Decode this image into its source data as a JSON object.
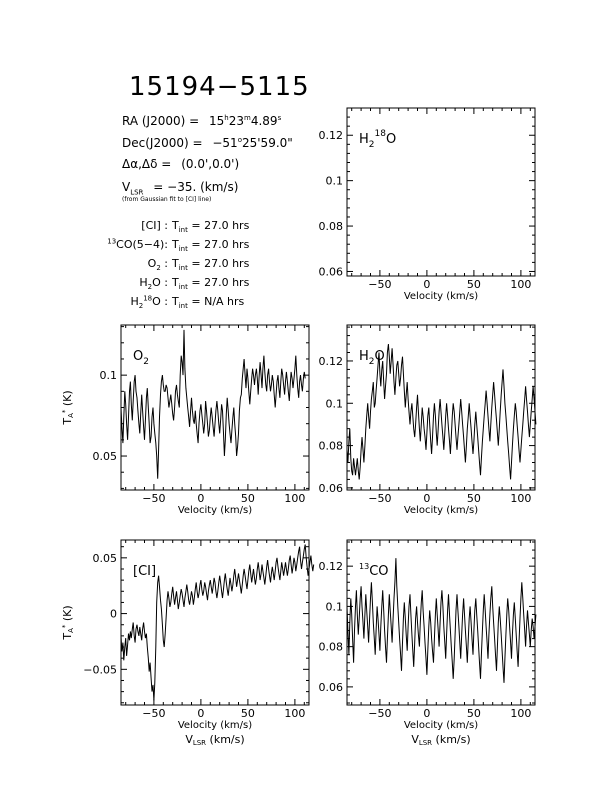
{
  "header": {
    "source": "15194−5115",
    "ra_label": "RA (J2000) =",
    "ra_h": "15",
    "ra_m": "23",
    "ra_s": "4.89",
    "dec_label": "Dec(J2000) =",
    "dec_deg": "−51",
    "dec_rest": "25'59.0\"",
    "offset_label": "Δα,Δδ =",
    "offset_value": "(0.0',0.0')",
    "vlsr_label": "= −35. (km/s)",
    "vlsr_note": "(from Gaussian fit to [CI] line)"
  },
  "integrations": [
    {
      "line": "[CI]",
      "value": "27.0 hrs"
    },
    {
      "line": "13CO(5−4)",
      "value": "27.0 hrs"
    },
    {
      "line": "O2",
      "value": "27.0 hrs"
    },
    {
      "line": "H2O",
      "value": "27.0 hrs"
    },
    {
      "line": "H218O",
      "value": "N/A hrs"
    }
  ],
  "tint_text": "T",
  "tint_sub": "int",
  "chart_data": [
    {
      "id": "h218o",
      "type": "line",
      "label_main": "H",
      "label_sub": "2",
      "label_sup": "18",
      "label_tail": "O",
      "xlim": [
        -85,
        115
      ],
      "ylim": [
        0.058,
        0.132
      ],
      "xticks": [
        -50,
        0,
        50,
        100
      ],
      "yticks": [
        0.06,
        0.08,
        0.1,
        0.12
      ],
      "xlabel": "Velocity (km/s)",
      "xlabel2": "",
      "ylabel": "",
      "series": []
    },
    {
      "id": "o2",
      "type": "line",
      "label_main": "O",
      "label_sub": "2",
      "label_sup": "",
      "label_tail": "",
      "xlim": [
        -85,
        115
      ],
      "ylim": [
        0.029,
        0.131
      ],
      "xticks": [
        -50,
        0,
        50,
        100
      ],
      "yticks": [
        0.05,
        0.1
      ],
      "xlabel": "Velocity (km/s)",
      "xlabel2": "",
      "ylabel": "T",
      "series": [
        {
          "x0": -85,
          "dx": 1,
          "values": [
            0.08,
            0.068,
            0.058,
            0.074,
            0.09,
            0.082,
            0.07,
            0.06,
            0.074,
            0.09,
            0.096,
            0.082,
            0.072,
            0.084,
            0.096,
            0.1,
            0.09,
            0.086,
            0.078,
            0.07,
            0.064,
            0.076,
            0.088,
            0.078,
            0.068,
            0.06,
            0.072,
            0.086,
            0.092,
            0.08,
            0.07,
            0.058,
            0.062,
            0.074,
            0.08,
            0.07,
            0.064,
            0.058,
            0.05,
            0.036,
            0.054,
            0.074,
            0.088,
            0.096,
            0.1,
            0.094,
            0.09,
            0.09,
            0.094,
            0.092,
            0.086,
            0.08,
            0.084,
            0.088,
            0.082,
            0.076,
            0.072,
            0.08,
            0.09,
            0.094,
            0.088,
            0.084,
            0.08,
            0.1,
            0.112,
            0.108,
            0.1,
            0.128,
            0.104,
            0.092,
            0.086,
            0.08,
            0.074,
            0.068,
            0.078,
            0.086,
            0.078,
            0.072,
            0.07,
            0.078,
            0.07,
            0.064,
            0.058,
            0.07,
            0.078,
            0.082,
            0.076,
            0.07,
            0.064,
            0.07,
            0.084,
            0.078,
            0.07,
            0.062,
            0.066,
            0.074,
            0.08,
            0.074,
            0.068,
            0.062,
            0.07,
            0.078,
            0.084,
            0.078,
            0.07,
            0.064,
            0.072,
            0.082,
            0.078,
            0.064,
            0.05,
            0.06,
            0.076,
            0.086,
            0.078,
            0.07,
            0.064,
            0.058,
            0.066,
            0.074,
            0.08,
            0.07,
            0.062,
            0.05,
            0.056,
            0.064,
            0.078,
            0.086,
            0.088,
            0.098,
            0.104,
            0.11,
            0.1,
            0.092,
            0.104,
            0.098,
            0.09,
            0.082,
            0.09,
            0.098,
            0.104,
            0.1,
            0.094,
            0.1,
            0.104,
            0.098,
            0.088,
            0.1,
            0.108,
            0.1,
            0.092,
            0.104,
            0.112,
            0.102,
            0.094,
            0.09,
            0.1,
            0.104,
            0.096,
            0.09,
            0.094,
            0.1,
            0.096,
            0.088,
            0.08,
            0.088,
            0.096,
            0.1,
            0.092,
            0.086,
            0.096,
            0.104,
            0.1,
            0.094,
            0.088,
            0.096,
            0.102,
            0.096,
            0.09,
            0.084,
            0.094,
            0.102,
            0.098,
            0.092,
            0.098,
            0.104,
            0.112,
            0.1,
            0.092,
            0.086,
            0.096,
            0.1,
            0.094,
            0.09,
            0.098,
            0.102,
            0.098
          ]
        }
      ]
    },
    {
      "id": "h2o",
      "type": "line",
      "label_main": "H",
      "label_sub": "2",
      "label_sup": "",
      "label_tail": "O",
      "xlim": [
        -85,
        115
      ],
      "ylim": [
        0.059,
        0.137
      ],
      "xticks": [
        -50,
        0,
        50,
        100
      ],
      "yticks": [
        0.06,
        0.08,
        0.1,
        0.12
      ],
      "xlabel": "Velocity (km/s)",
      "xlabel2": "",
      "ylabel": "",
      "series": [
        {
          "x0": -85,
          "dx": 1,
          "values": [
            0.078,
            0.072,
            0.082,
            0.088,
            0.074,
            0.068,
            0.066,
            0.074,
            0.07,
            0.066,
            0.07,
            0.074,
            0.068,
            0.064,
            0.07,
            0.078,
            0.084,
            0.078,
            0.072,
            0.08,
            0.088,
            0.094,
            0.1,
            0.094,
            0.088,
            0.096,
            0.102,
            0.106,
            0.11,
            0.098,
            0.1,
            0.106,
            0.112,
            0.118,
            0.124,
            0.114,
            0.108,
            0.116,
            0.12,
            0.11,
            0.102,
            0.108,
            0.114,
            0.124,
            0.128,
            0.122,
            0.114,
            0.12,
            0.126,
            0.118,
            0.11,
            0.104,
            0.112,
            0.118,
            0.12,
            0.114,
            0.108,
            0.112,
            0.118,
            0.122,
            0.114,
            0.106,
            0.098,
            0.104,
            0.11,
            0.102,
            0.096,
            0.09,
            0.096,
            0.1,
            0.094,
            0.088,
            0.084,
            0.09,
            0.098,
            0.104,
            0.096,
            0.088,
            0.082,
            0.09,
            0.098,
            0.094,
            0.088,
            0.084,
            0.078,
            0.086,
            0.094,
            0.098,
            0.09,
            0.082,
            0.076,
            0.084,
            0.094,
            0.1,
            0.094,
            0.086,
            0.08,
            0.088,
            0.096,
            0.102,
            0.096,
            0.09,
            0.084,
            0.078,
            0.086,
            0.094,
            0.1,
            0.094,
            0.088,
            0.082,
            0.076,
            0.084,
            0.094,
            0.1,
            0.096,
            0.09,
            0.084,
            0.078,
            0.084,
            0.09,
            0.096,
            0.102,
            0.096,
            0.09,
            0.084,
            0.078,
            0.072,
            0.08,
            0.088,
            0.094,
            0.1,
            0.094,
            0.088,
            0.082,
            0.076,
            0.082,
            0.09,
            0.096,
            0.09,
            0.084,
            0.078,
            0.072,
            0.066,
            0.074,
            0.082,
            0.088,
            0.094,
            0.1,
            0.106,
            0.1,
            0.094,
            0.088,
            0.082,
            0.09,
            0.098,
            0.104,
            0.11,
            0.104,
            0.098,
            0.092,
            0.086,
            0.08,
            0.088,
            0.096,
            0.104,
            0.11,
            0.116,
            0.108,
            0.1,
            0.094,
            0.088,
            0.082,
            0.076,
            0.07,
            0.064,
            0.072,
            0.08,
            0.088,
            0.094,
            0.1,
            0.096,
            0.09,
            0.084,
            0.078,
            0.072,
            0.078,
            0.084,
            0.09,
            0.096,
            0.102,
            0.108,
            0.102,
            0.096,
            0.09,
            0.084,
            0.09,
            0.096,
            0.102,
            0.108,
            0.102,
            0.096,
            0.09
          ]
        }
      ]
    },
    {
      "id": "ci",
      "type": "line",
      "label_main": "[CI]",
      "label_sub": "",
      "label_sup": "",
      "label_tail": "",
      "xlim": [
        -85,
        115
      ],
      "ylim": [
        -0.082,
        0.066
      ],
      "xticks": [
        -50,
        0,
        50,
        100
      ],
      "yticks": [
        -0.05,
        0,
        0.05
      ],
      "xlabel": "Velocity (km/s)",
      "xlabel2": "V",
      "ylabel": "T",
      "series": [
        {
          "x0": -85,
          "dx": 1,
          "values": [
            -0.02,
            -0.034,
            -0.026,
            -0.042,
            -0.03,
            -0.022,
            -0.038,
            -0.028,
            -0.018,
            -0.024,
            -0.016,
            -0.022,
            -0.014,
            -0.008,
            -0.02,
            -0.026,
            -0.014,
            -0.01,
            -0.016,
            -0.02,
            -0.012,
            -0.018,
            -0.024,
            -0.014,
            -0.008,
            -0.016,
            -0.022,
            -0.018,
            -0.03,
            -0.04,
            -0.052,
            -0.044,
            -0.058,
            -0.07,
            -0.064,
            -0.078,
            -0.062,
            -0.03,
            0.01,
            0.028,
            0.034,
            0.024,
            0.012,
            0.004,
            -0.01,
            -0.024,
            -0.03,
            -0.018,
            -0.004,
            0.012,
            0.02,
            0.014,
            0.006,
            0.01,
            0.018,
            0.024,
            0.016,
            0.008,
            0.014,
            0.02,
            0.012,
            0.004,
            0.01,
            0.016,
            0.022,
            0.018,
            0.012,
            0.006,
            0.014,
            0.02,
            0.026,
            0.02,
            0.012,
            0.008,
            0.014,
            0.02,
            0.016,
            0.008,
            0.014,
            0.022,
            0.028,
            0.02,
            0.014,
            0.018,
            0.026,
            0.03,
            0.022,
            0.016,
            0.02,
            0.028,
            0.024,
            0.018,
            0.012,
            0.02,
            0.026,
            0.03,
            0.024,
            0.018,
            0.024,
            0.032,
            0.028,
            0.02,
            0.014,
            0.02,
            0.028,
            0.034,
            0.028,
            0.02,
            0.014,
            0.022,
            0.03,
            0.036,
            0.028,
            0.022,
            0.016,
            0.024,
            0.032,
            0.026,
            0.02,
            0.026,
            0.034,
            0.04,
            0.032,
            0.024,
            0.03,
            0.036,
            0.03,
            0.024,
            0.018,
            0.026,
            0.034,
            0.04,
            0.034,
            0.028,
            0.022,
            0.03,
            0.038,
            0.044,
            0.036,
            0.028,
            0.034,
            0.04,
            0.032,
            0.026,
            0.032,
            0.04,
            0.046,
            0.038,
            0.03,
            0.036,
            0.044,
            0.038,
            0.032,
            0.026,
            0.034,
            0.042,
            0.048,
            0.04,
            0.034,
            0.028,
            0.036,
            0.042,
            0.036,
            0.03,
            0.038,
            0.046,
            0.05,
            0.042,
            0.036,
            0.03,
            0.038,
            0.046,
            0.04,
            0.034,
            0.04,
            0.046,
            0.04,
            0.034,
            0.04,
            0.048,
            0.052,
            0.044,
            0.036,
            0.042,
            0.05,
            0.046,
            0.038,
            0.044,
            0.05,
            0.056,
            0.06,
            0.048,
            0.04,
            0.046,
            0.052,
            0.058,
            0.062,
            0.05,
            0.042,
            0.034,
            0.04,
            0.046,
            0.052,
            0.044,
            0.038,
            0.044
          ]
        }
      ]
    },
    {
      "id": "13co",
      "type": "line",
      "label_main": "CO",
      "label_sub": "",
      "label_sup": "13",
      "label_tail": "",
      "xlim": [
        -85,
        115
      ],
      "ylim": [
        0.051,
        0.133
      ],
      "xticks": [
        -50,
        0,
        50,
        100
      ],
      "yticks": [
        0.06,
        0.08,
        0.1,
        0.12
      ],
      "xlabel": "Velocity (km/s)",
      "xlabel2": "V",
      "ylabel": "",
      "series": [
        {
          "x0": -85,
          "dx": 1,
          "values": [
            0.1,
            0.088,
            0.076,
            0.092,
            0.104,
            0.096,
            0.084,
            0.072,
            0.088,
            0.1,
            0.108,
            0.096,
            0.086,
            0.094,
            0.104,
            0.11,
            0.1,
            0.092,
            0.084,
            0.096,
            0.106,
            0.098,
            0.09,
            0.082,
            0.094,
            0.104,
            0.112,
            0.102,
            0.092,
            0.084,
            0.076,
            0.088,
            0.1,
            0.094,
            0.086,
            0.078,
            0.09,
            0.1,
            0.108,
            0.098,
            0.088,
            0.08,
            0.072,
            0.084,
            0.096,
            0.106,
            0.098,
            0.09,
            0.082,
            0.094,
            0.104,
            0.112,
            0.124,
            0.11,
            0.1,
            0.092,
            0.084,
            0.076,
            0.068,
            0.082,
            0.094,
            0.102,
            0.094,
            0.086,
            0.078,
            0.09,
            0.1,
            0.106,
            0.096,
            0.086,
            0.078,
            0.07,
            0.082,
            0.094,
            0.1,
            0.092,
            0.086,
            0.08,
            0.092,
            0.102,
            0.108,
            0.098,
            0.09,
            0.082,
            0.074,
            0.066,
            0.078,
            0.09,
            0.098,
            0.092,
            0.084,
            0.078,
            0.072,
            0.084,
            0.096,
            0.104,
            0.096,
            0.088,
            0.08,
            0.092,
            0.102,
            0.108,
            0.1,
            0.09,
            0.082,
            0.074,
            0.086,
            0.098,
            0.106,
            0.096,
            0.088,
            0.08,
            0.072,
            0.064,
            0.074,
            0.086,
            0.098,
            0.106,
            0.098,
            0.09,
            0.082,
            0.074,
            0.086,
            0.096,
            0.104,
            0.096,
            0.088,
            0.08,
            0.072,
            0.084,
            0.094,
            0.1,
            0.092,
            0.084,
            0.076,
            0.088,
            0.098,
            0.104,
            0.096,
            0.088,
            0.08,
            0.072,
            0.064,
            0.076,
            0.088,
            0.098,
            0.106,
            0.098,
            0.09,
            0.082,
            0.074,
            0.086,
            0.096,
            0.104,
            0.11,
            0.1,
            0.092,
            0.084,
            0.076,
            0.068,
            0.08,
            0.092,
            0.1,
            0.094,
            0.086,
            0.078,
            0.07,
            0.062,
            0.074,
            0.086,
            0.096,
            0.104,
            0.098,
            0.09,
            0.082,
            0.074,
            0.086,
            0.096,
            0.102,
            0.094,
            0.086,
            0.078,
            0.07,
            0.082,
            0.094,
            0.104,
            0.112,
            0.104,
            0.096,
            0.088,
            0.08,
            0.09,
            0.098,
            0.092,
            0.086,
            0.08,
            0.088,
            0.094,
            0.09,
            0.084,
            0.09,
            0.096
          ]
        }
      ]
    }
  ]
}
